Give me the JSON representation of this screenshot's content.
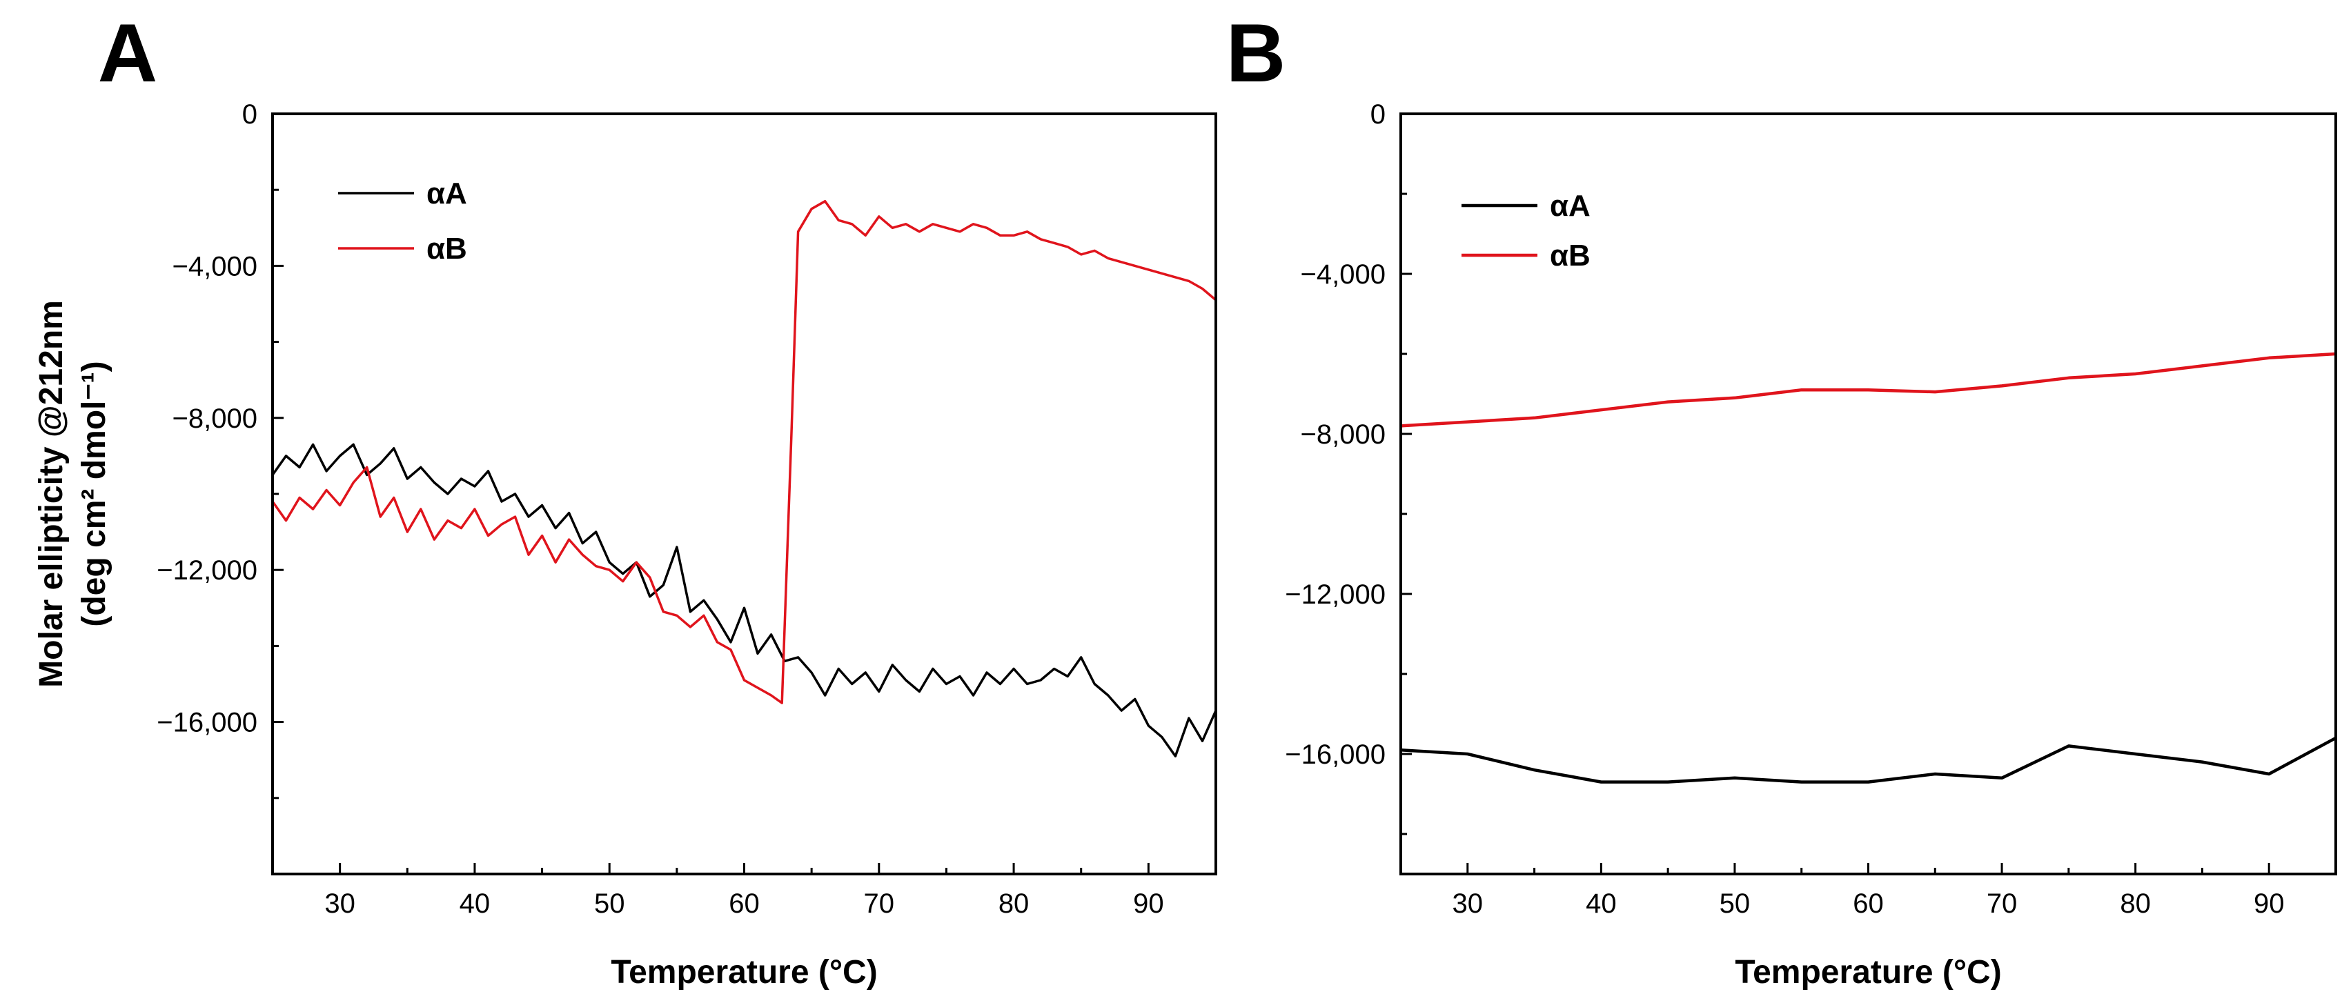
{
  "chart_data": [
    {
      "panel": "A",
      "type": "line",
      "title": "",
      "xlabel": "Temperature (°C)",
      "ylabel_line1": "Molar ellipticity @212nm",
      "ylabel_line2": "(deg cm² dmol⁻¹)",
      "xlim": [
        25,
        95
      ],
      "ylim": [
        -20000,
        0
      ],
      "xticks": [
        30,
        40,
        50,
        60,
        70,
        80,
        90
      ],
      "xtick_labels": [
        "30",
        "40",
        "50",
        "60",
        "70",
        "80",
        "90"
      ],
      "yticks": [
        0,
        -4000,
        -8000,
        -12000,
        -16000
      ],
      "ytick_labels": [
        "0",
        "−4,000",
        "−8,000",
        "−12,000",
        "−16,000"
      ],
      "legend_position": "top-left",
      "grid": false,
      "series": [
        {
          "name": "αA",
          "color": "#000000",
          "x": [
            25,
            26,
            27,
            28,
            29,
            30,
            31,
            32,
            33,
            34,
            35,
            36,
            37,
            38,
            39,
            40,
            41,
            42,
            43,
            44,
            45,
            46,
            47,
            48,
            49,
            50,
            51,
            52,
            53,
            54,
            55,
            56,
            57,
            58,
            59,
            60,
            61,
            62,
            63,
            64,
            65,
            66,
            67,
            68,
            69,
            70,
            71,
            72,
            73,
            74,
            75,
            76,
            77,
            78,
            79,
            80,
            81,
            82,
            83,
            84,
            85,
            86,
            87,
            88,
            89,
            90,
            91,
            92,
            93,
            94,
            95
          ],
          "values": [
            -9500,
            -9000,
            -9300,
            -8700,
            -9400,
            -9000,
            -8700,
            -9500,
            -9200,
            -8800,
            -9600,
            -9300,
            -9700,
            -10000,
            -9600,
            -9800,
            -9400,
            -10200,
            -10000,
            -10600,
            -10300,
            -10900,
            -10500,
            -11300,
            -11000,
            -11800,
            -12100,
            -11800,
            -12700,
            -12400,
            -11400,
            -13100,
            -12800,
            -13300,
            -13900,
            -13000,
            -14200,
            -13700,
            -14400,
            -14300,
            -14700,
            -15300,
            -14600,
            -15000,
            -14700,
            -15200,
            -14500,
            -14900,
            -15200,
            -14600,
            -15000,
            -14800,
            -15300,
            -14700,
            -15000,
            -14600,
            -15000,
            -14900,
            -14600,
            -14800,
            -14300,
            -15000,
            -15300,
            -15700,
            -15400,
            -16100,
            -16400,
            -16900,
            -15900,
            -16500,
            -15700
          ]
        },
        {
          "name": "αB",
          "color": "#e0141c",
          "x": [
            25,
            26,
            27,
            28,
            29,
            30,
            31,
            32,
            33,
            34,
            35,
            36,
            37,
            38,
            39,
            40,
            41,
            42,
            43,
            44,
            45,
            46,
            47,
            48,
            49,
            50,
            51,
            52,
            53,
            54,
            55,
            56,
            57,
            58,
            59,
            60,
            61,
            62,
            62.8,
            63.5,
            64,
            65,
            66,
            67,
            68,
            69,
            70,
            71,
            72,
            73,
            74,
            75,
            76,
            77,
            78,
            79,
            80,
            81,
            82,
            83,
            84,
            85,
            86,
            87,
            88,
            89,
            90,
            91,
            92,
            93,
            94,
            95
          ],
          "values": [
            -10200,
            -10700,
            -10100,
            -10400,
            -9900,
            -10300,
            -9700,
            -9300,
            -10600,
            -10100,
            -11000,
            -10400,
            -11200,
            -10700,
            -10900,
            -10400,
            -11100,
            -10800,
            -10600,
            -11600,
            -11100,
            -11800,
            -11200,
            -11600,
            -11900,
            -12000,
            -12300,
            -11800,
            -12200,
            -13100,
            -13200,
            -13500,
            -13200,
            -13900,
            -14100,
            -14900,
            -15100,
            -15300,
            -15500,
            -8500,
            -3100,
            -2500,
            -2300,
            -2800,
            -2900,
            -3200,
            -2700,
            -3000,
            -2900,
            -3100,
            -2900,
            -3000,
            -3100,
            -2900,
            -3000,
            -3200,
            -3200,
            -3100,
            -3300,
            -3400,
            -3500,
            -3700,
            -3600,
            -3800,
            -3900,
            -4000,
            -4100,
            -4200,
            -4300,
            -4400,
            -4600,
            -4900
          ]
        }
      ]
    },
    {
      "panel": "B",
      "type": "line",
      "title": "",
      "xlabel": "Temperature (°C)",
      "xlim": [
        25,
        95
      ],
      "ylim": [
        -19000,
        0
      ],
      "xticks": [
        30,
        40,
        50,
        60,
        70,
        80,
        90
      ],
      "xtick_labels": [
        "30",
        "40",
        "50",
        "60",
        "70",
        "80",
        "90"
      ],
      "yticks": [
        0,
        -4000,
        -8000,
        -12000,
        -16000
      ],
      "ytick_labels": [
        "0",
        "−4,000",
        "−8,000",
        "−12,000",
        "−16,000"
      ],
      "legend_position": "top-left",
      "grid": false,
      "series": [
        {
          "name": "αA",
          "color": "#000000",
          "x": [
            25,
            30,
            35,
            40,
            45,
            50,
            55,
            60,
            65,
            70,
            75,
            80,
            85,
            90,
            95
          ],
          "values": [
            -15900,
            -16000,
            -16400,
            -16700,
            -16700,
            -16600,
            -16700,
            -16700,
            -16500,
            -16600,
            -15800,
            -16000,
            -16200,
            -16500,
            -15600
          ]
        },
        {
          "name": "αB",
          "color": "#e0141c",
          "x": [
            25,
            30,
            35,
            40,
            45,
            50,
            55,
            60,
            65,
            70,
            75,
            80,
            85,
            90,
            95
          ],
          "values": [
            -7800,
            -7700,
            -7600,
            -7400,
            -7200,
            -7100,
            -6900,
            -6900,
            -6950,
            -6800,
            -6600,
            -6500,
            -6300,
            -6100,
            -6000
          ]
        }
      ]
    }
  ]
}
